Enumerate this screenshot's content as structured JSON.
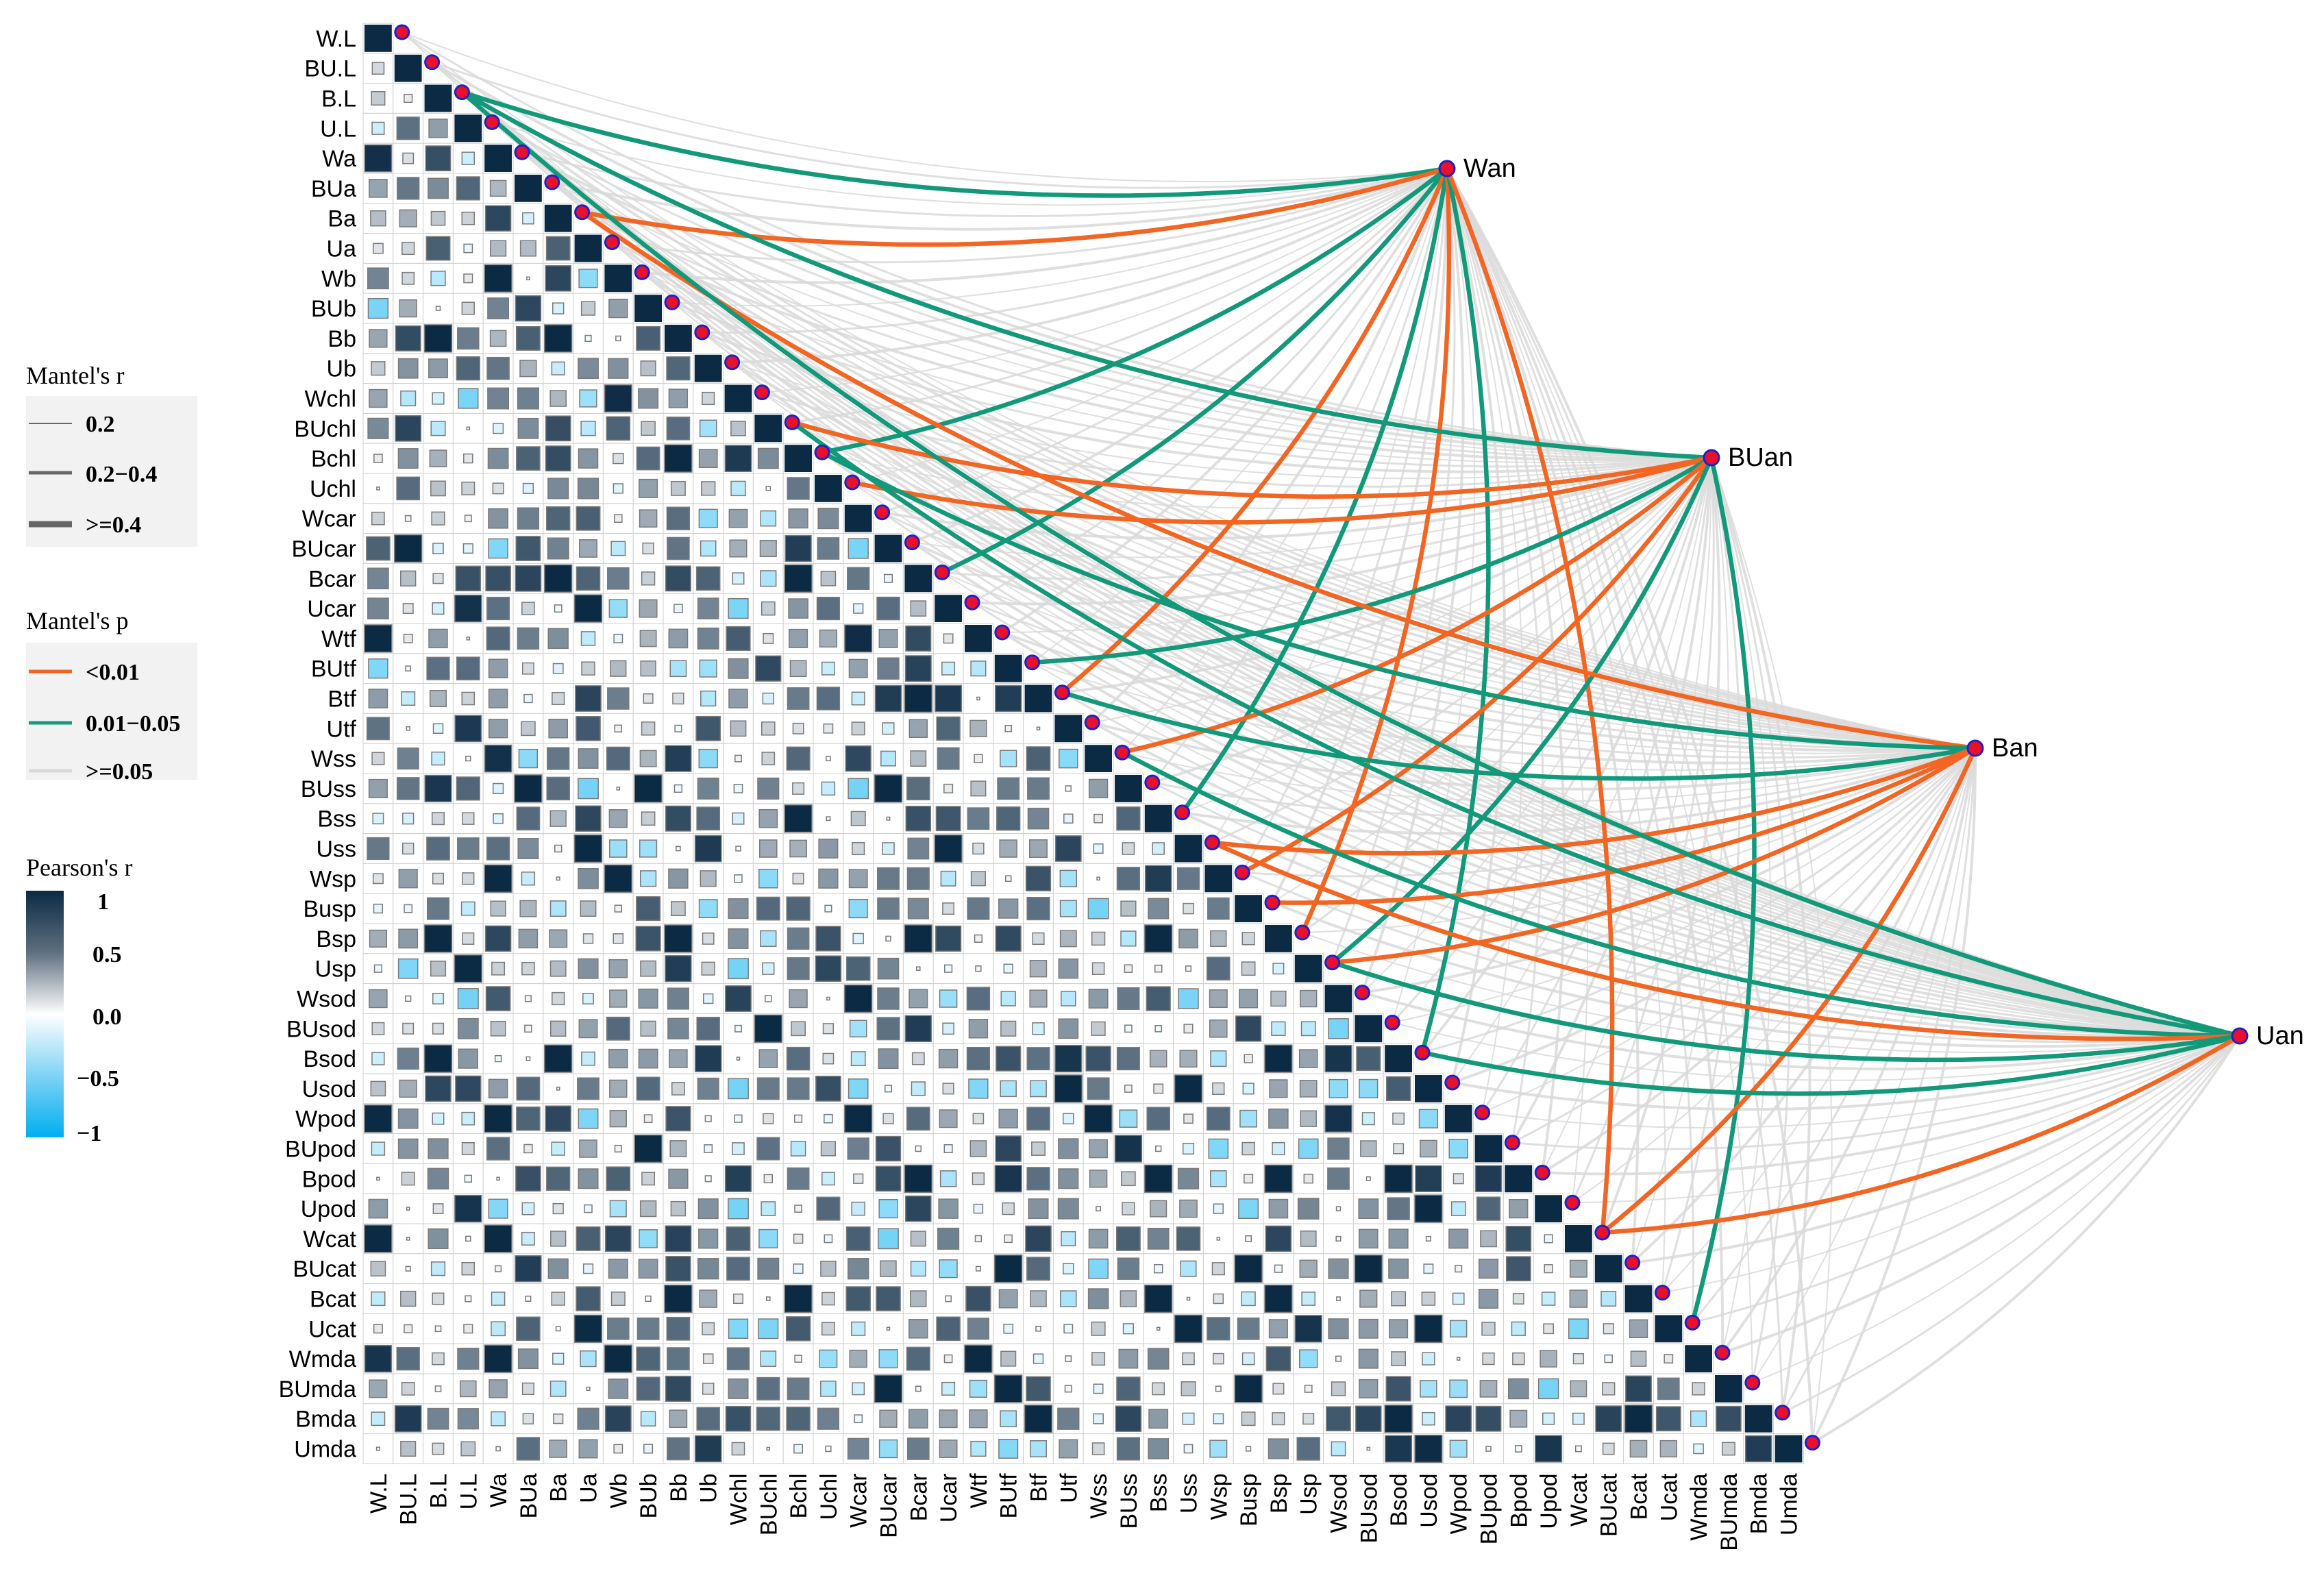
{
  "chart_data": {
    "type": "heatmap",
    "variables": [
      "W.L",
      "BU.L",
      "B.L",
      "U.L",
      "Wa",
      "BUa",
      "Ba",
      "Ua",
      "Wb",
      "BUb",
      "Bb",
      "Ub",
      "Wchl",
      "BUchl",
      "Bchl",
      "Uchl",
      "Wcar",
      "BUcar",
      "Bcar",
      "Ucar",
      "Wtf",
      "BUtf",
      "Btf",
      "Utf",
      "Wss",
      "BUss",
      "Bss",
      "Uss",
      "Wsp",
      "Busp",
      "Bsp",
      "Usp",
      "Wsod",
      "BUsod",
      "Bsod",
      "Usod",
      "Wpod",
      "BUpod",
      "Bpod",
      "Upod",
      "Wcat",
      "BUcat",
      "Bcat",
      "Ucat",
      "Wmda",
      "BUmda",
      "Bmda",
      "Umda"
    ],
    "correlation_scale": {
      "min": -1,
      "max": 1,
      "low_color": "#00aeef",
      "mid_color": "#ffffff",
      "high_color": "#0b2a44"
    },
    "mantel_targets": [
      "Wan",
      "BUan",
      "Ban",
      "Uan"
    ],
    "mantel_colors": {
      "<0.01": "#f26522",
      "0.01-0.05": "#12997a",
      ">=0.05": "#d9d9d9"
    },
    "mantel_links": [
      {
        "from": "Wan",
        "to": "B.L",
        "p": "0.01-0.05",
        "r": "0.2-0.4"
      },
      {
        "from": "Wan",
        "to": "Ba",
        "p": "<0.01",
        "r": "0.2-0.4"
      },
      {
        "from": "Wan",
        "to": "Bchl",
        "p": "0.01-0.05",
        "r": "0.2-0.4"
      },
      {
        "from": "Wan",
        "to": "Bcar",
        "p": "0.01-0.05",
        "r": "0.2-0.4"
      },
      {
        "from": "Wan",
        "to": "Btf",
        "p": "<0.01",
        "r": "0.2-0.4"
      },
      {
        "from": "Wan",
        "to": "Bss",
        "p": "0.01-0.05",
        "r": "0.2-0.4"
      },
      {
        "from": "Wan",
        "to": "Bsp",
        "p": "<0.01",
        "r": "0.2-0.4"
      },
      {
        "from": "Wan",
        "to": "Bsod",
        "p": "0.01-0.05",
        "r": "0.2-0.4"
      },
      {
        "from": "Wan",
        "to": "Wcat",
        "p": "<0.01",
        "r": "0.2-0.4"
      },
      {
        "from": "BUan",
        "to": "B.L",
        "p": "0.01-0.05",
        "r": "0.2-0.4"
      },
      {
        "from": "BUan",
        "to": "BUchl",
        "p": "<0.01",
        "r": "0.2-0.4"
      },
      {
        "from": "BUan",
        "to": "Uchl",
        "p": "<0.01",
        "r": "0.2-0.4"
      },
      {
        "from": "BUan",
        "to": "BUtf",
        "p": "0.01-0.05",
        "r": "0.2-0.4"
      },
      {
        "from": "BUan",
        "to": "Wss",
        "p": "<0.01",
        "r": "0.2-0.4"
      },
      {
        "from": "BUan",
        "to": "Wsp",
        "p": "<0.01",
        "r": "0.2-0.4"
      },
      {
        "from": "BUan",
        "to": "Usp",
        "p": "0.01-0.05",
        "r": "0.2-0.4"
      },
      {
        "from": "BUan",
        "to": "Ucat",
        "p": "0.01-0.05",
        "r": "0.2-0.4"
      },
      {
        "from": "Ban",
        "to": "Ba",
        "p": "<0.01",
        "r": "0.2-0.4"
      },
      {
        "from": "Ban",
        "to": "Bchl",
        "p": "0.01-0.05",
        "r": "0.2-0.4"
      },
      {
        "from": "Ban",
        "to": "Btf",
        "p": "0.01-0.05",
        "r": "0.2-0.4"
      },
      {
        "from": "Ban",
        "to": "Uss",
        "p": "<0.01",
        "r": "0.2-0.4"
      },
      {
        "from": "Ban",
        "to": "Busp",
        "p": "<0.01",
        "r": "0.2-0.4"
      },
      {
        "from": "Ban",
        "to": "Usp",
        "p": "<0.01",
        "r": "0.2-0.4"
      },
      {
        "from": "Ban",
        "to": "Wcat",
        "p": "<0.01",
        "r": "0.2-0.4"
      },
      {
        "from": "Uan",
        "to": "B.L",
        "p": "0.01-0.05",
        "r": "0.2-0.4"
      },
      {
        "from": "Uan",
        "to": "BUchl",
        "p": "0.01-0.05",
        "r": "0.2-0.4"
      },
      {
        "from": "Uan",
        "to": "Wss",
        "p": "0.01-0.05",
        "r": "0.2-0.4"
      },
      {
        "from": "Uan",
        "to": "Uss",
        "p": "<0.01",
        "r": "0.2-0.4"
      },
      {
        "from": "Uan",
        "to": "Usp",
        "p": "0.01-0.05",
        "r": "0.2-0.4"
      },
      {
        "from": "Uan",
        "to": "Bsod",
        "p": "0.01-0.05",
        "r": "0.2-0.4"
      },
      {
        "from": "Uan",
        "to": "Wcat",
        "p": "<0.01",
        "r": "0.2-0.4"
      }
    ],
    "legend": {
      "mantel_r": {
        "title": "Mantel's r",
        "items": [
          "0.2",
          "0.2−0.4",
          ">=0.4"
        ]
      },
      "mantel_p": {
        "title": "Mantel's p",
        "items": [
          "<0.01",
          "0.01−0.05",
          ">=0.05"
        ]
      },
      "pearson_r": {
        "title": "Pearson's r",
        "ticks": [
          "1",
          "0.5",
          "0.0",
          "−0.5",
          "−1"
        ]
      }
    }
  }
}
